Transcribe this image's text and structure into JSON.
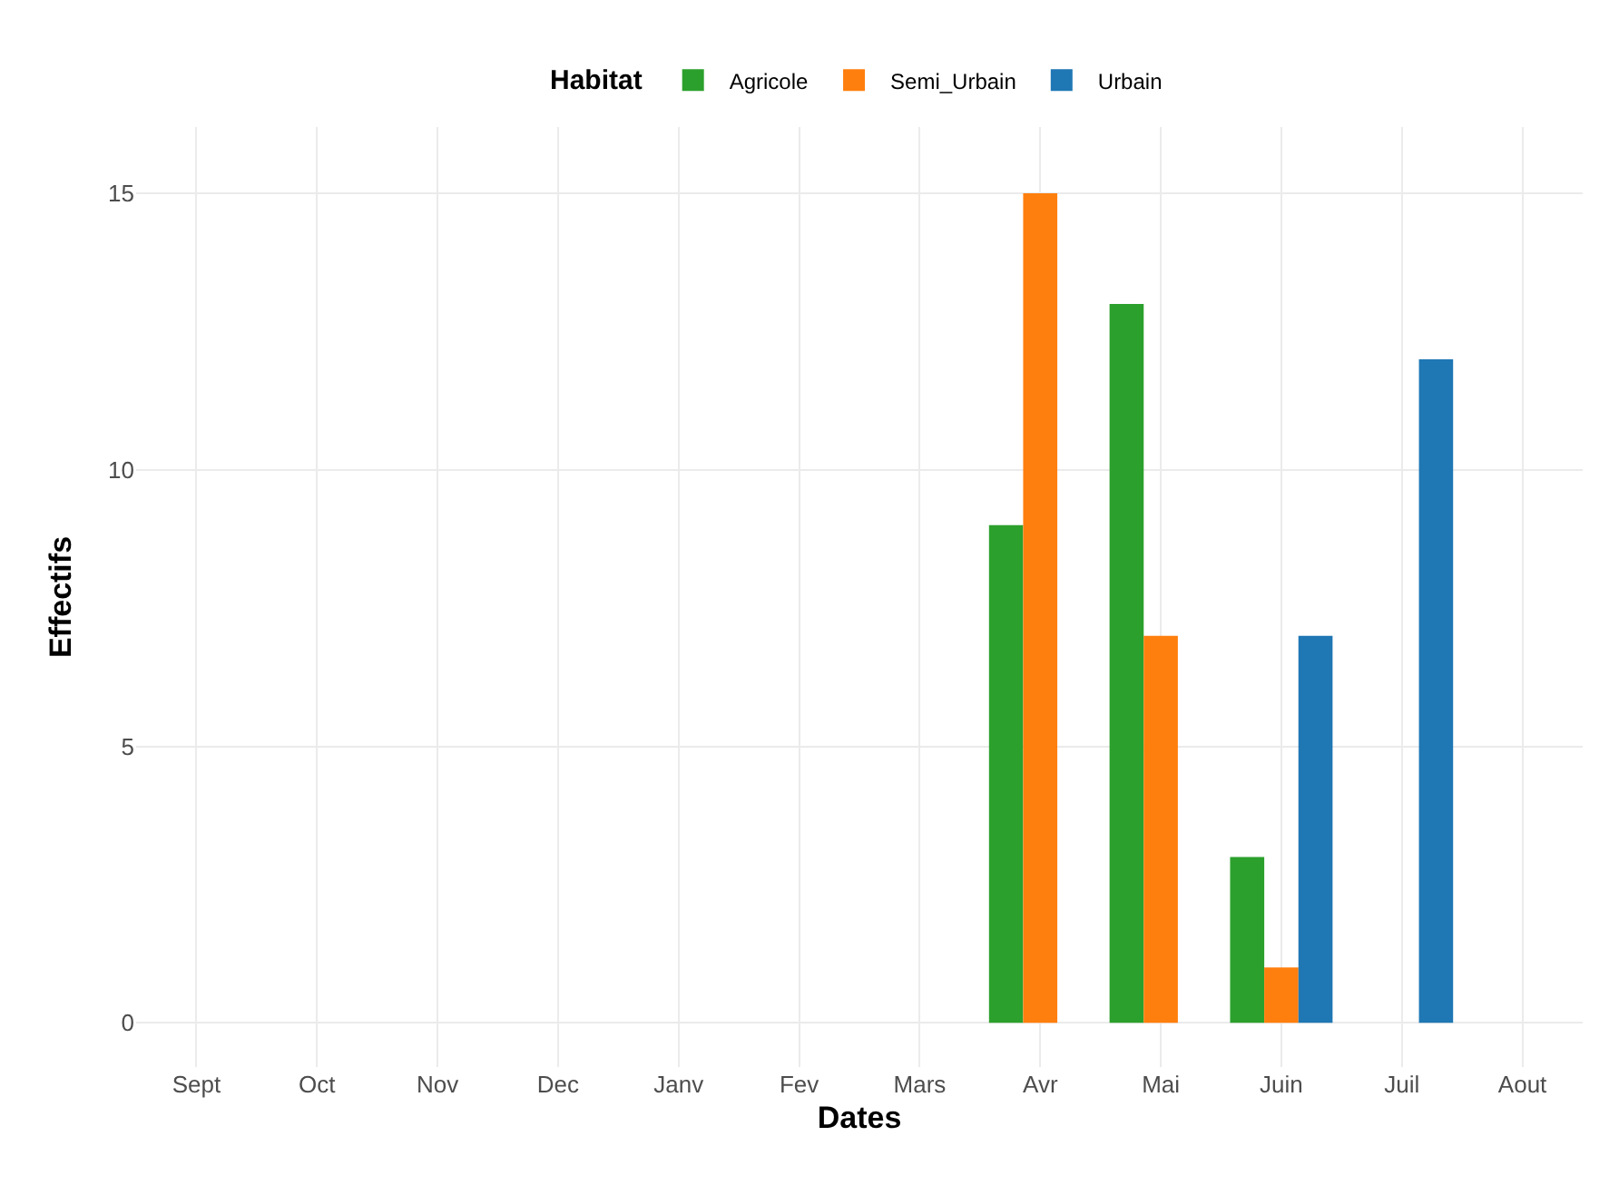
{
  "chart_data": {
    "type": "bar",
    "xlabel": "Dates",
    "ylabel": "Effectifs",
    "legend_title": "Habitat",
    "categories": [
      "Sept",
      "Oct",
      "Nov",
      "Dec",
      "Janv",
      "Fev",
      "Mars",
      "Avr",
      "Mai",
      "Juin",
      "Juil",
      "Aout"
    ],
    "series": [
      {
        "name": "Agricole",
        "color": "#2ca02c",
        "values": [
          null,
          null,
          null,
          null,
          null,
          null,
          null,
          9,
          13,
          3,
          null,
          null
        ]
      },
      {
        "name": "Semi_Urbain",
        "color": "#ff7f0e",
        "values": [
          null,
          null,
          null,
          null,
          null,
          null,
          null,
          15,
          7,
          1,
          null,
          null
        ]
      },
      {
        "name": "Urbain",
        "color": "#1f77b4",
        "values": [
          null,
          null,
          null,
          null,
          null,
          null,
          null,
          null,
          null,
          7,
          12,
          null
        ]
      }
    ],
    "ylim": [
      -0.8,
      16.2
    ],
    "yticks": [
      0,
      5,
      10,
      15
    ],
    "grid": true,
    "legend": "top"
  }
}
